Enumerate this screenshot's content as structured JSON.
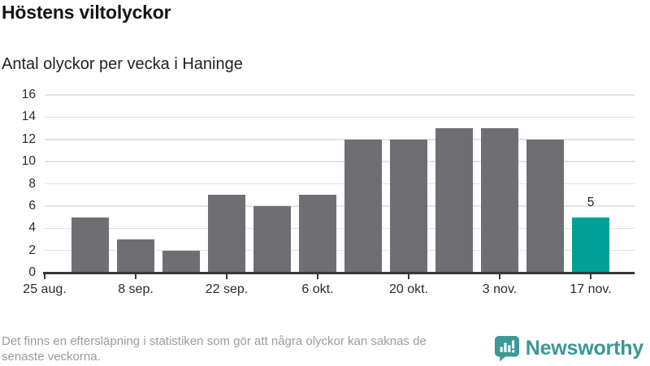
{
  "header": {
    "title": "Höstens viltolyckor",
    "subtitle": "Antal olyckor per vecka i Haninge"
  },
  "chart_data": {
    "type": "bar",
    "title": "Höstens viltolyckor",
    "subtitle": "Antal olyckor per vecka i Haninge",
    "note": "weekly slots from 25 aug. to 17 nov.; first slot has no bar; x axis labels every second week",
    "values": [
      null,
      5,
      3,
      2,
      7,
      6,
      7,
      12,
      12,
      13,
      13,
      12,
      5
    ],
    "x_tick_labels": [
      "25 aug.",
      "8 sep.",
      "22 sep.",
      "6 okt.",
      "20 okt.",
      "3 nov.",
      "17 nov."
    ],
    "x_tick_slot_indices": [
      0,
      2,
      4,
      6,
      8,
      10,
      12
    ],
    "ylim": [
      0,
      16
    ],
    "ytick_step": 2,
    "ytick_labels": [
      "0",
      "2",
      "4",
      "6",
      "8",
      "10",
      "12",
      "14",
      "16"
    ],
    "grid": true,
    "legend": "none",
    "bar_color": "#6e6e73",
    "highlight_color": "#00a096",
    "highlight_index": 12,
    "highlight_value_label": "5"
  },
  "footer": {
    "disclaimer": "Det finns en eftersläpning i statistiken som gör att några olyckor kan saknas de senaste veckorna.",
    "brand": "Newsworthy",
    "brand_color": "#3a9794"
  },
  "colors": {
    "background": "#ffffff",
    "bar_gray": "#6e6e73",
    "bar_teal": "#00a096",
    "gridline": "#e3e3e3",
    "axis": "#37373b",
    "text_dark": "#222222",
    "text_muted": "#9b9b9b",
    "brand_teal": "#3a9794"
  }
}
